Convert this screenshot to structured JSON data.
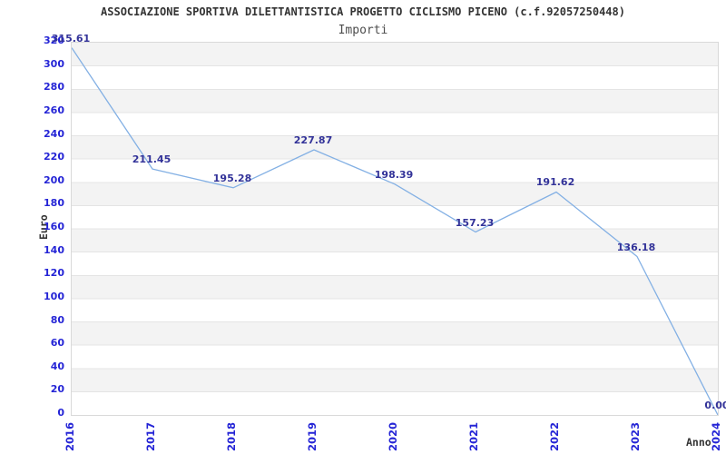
{
  "chart_data": {
    "type": "line",
    "title": "ASSOCIAZIONE SPORTIVA DILETTANTISTICA PROGETTO CICLISMO PICENO (c.f.92057250448)",
    "subtitle": "Importi",
    "xlabel": "Anno",
    "ylabel": "Euro",
    "categories": [
      "2016",
      "2017",
      "2018",
      "2019",
      "2020",
      "2021",
      "2022",
      "2023",
      "2024"
    ],
    "series": [
      {
        "name": "Importi",
        "values": [
          315.61,
          211.45,
          195.28,
          227.87,
          198.39,
          157.23,
          191.62,
          136.18,
          0.0
        ]
      }
    ],
    "point_labels": [
      "315.61",
      "211.45",
      "195.28",
      "227.87",
      "198.39",
      "157.23",
      "191.62",
      "136.18",
      "0.00"
    ],
    "ylim": [
      0,
      320
    ],
    "ytick_step": 20,
    "grid": "horizontal-bands-alternating",
    "legend_position": "none",
    "colors": {
      "line": "#83b0e4",
      "tick_label": "#2525d6",
      "point_label": "#333399",
      "band_gray": "#f3f3f3",
      "gridline": "#e4e4e4",
      "plot_border": "#d9d9d9",
      "title": "#333333",
      "subtitle": "#4d4d4d",
      "axis_title": "#333333",
      "background": "#ffffff"
    }
  }
}
